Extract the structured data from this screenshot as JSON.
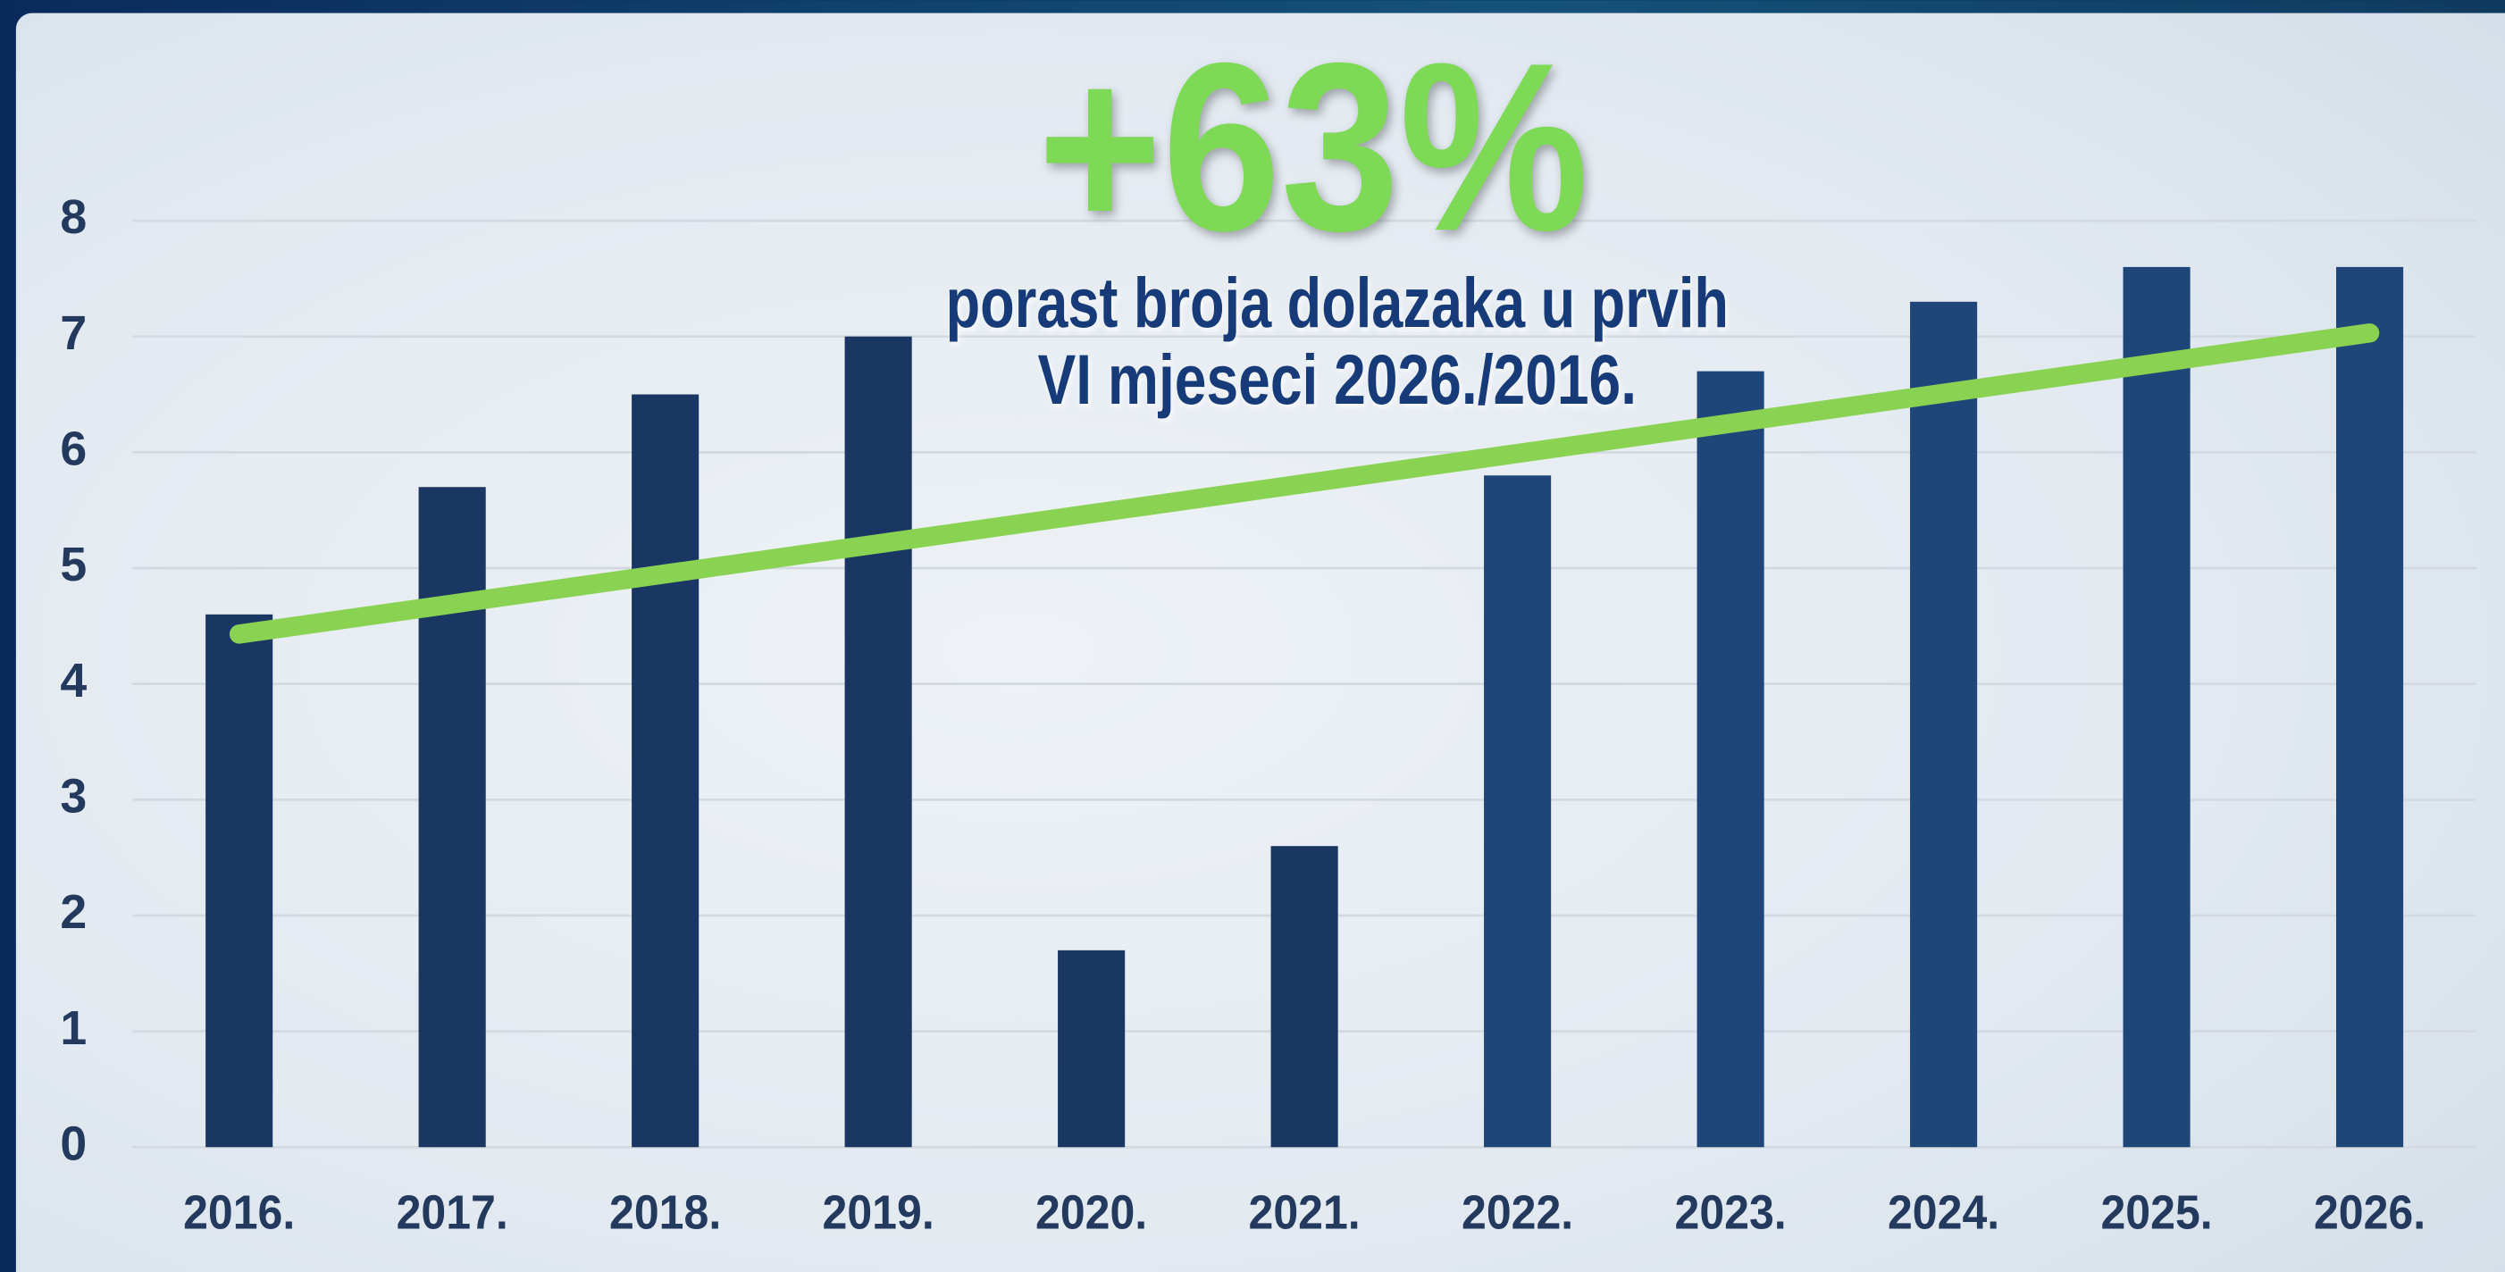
{
  "chart_data": {
    "type": "bar",
    "title": "+63%",
    "subtitle": [
      "porast broja dolazaka u prvih",
      "VI mjeseci 2026./2016."
    ],
    "categories": [
      "2016.",
      "2017.",
      "2018.",
      "2019.",
      "2020.",
      "2021.",
      "2022.",
      "2023.",
      "2024.",
      "2025.",
      "2026."
    ],
    "values": [
      4.6,
      5.7,
      6.5,
      7.0,
      1.7,
      2.6,
      5.8,
      6.7,
      7.3,
      7.6,
      7.6
    ],
    "colors": [
      "#1a3764",
      "#1a3764",
      "#1a3764",
      "#1a3764",
      "#1a3764",
      "#1a3764",
      "#1f4679",
      "#1f4679",
      "#1f4679",
      "#1f4679",
      "#1f4679"
    ],
    "trendline": {
      "start": 4.43,
      "end": 7.03,
      "color": "#8ad252"
    },
    "ylim": [
      0,
      8
    ],
    "yticks": [
      0,
      1,
      2,
      3,
      4,
      5,
      6,
      7,
      8
    ],
    "grid": true
  }
}
